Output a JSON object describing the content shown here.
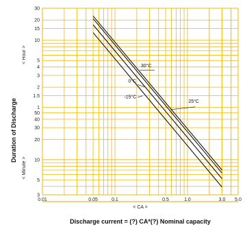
{
  "chart_data": {
    "type": "line",
    "xlabel": "Discharge current = (?) CA*(?) Nominal capacity",
    "x_unit_label": "< CA >",
    "ylabel": "Duration of Discharge",
    "y_unit_hour": "< Hour >",
    "y_unit_minute": "< Minute >",
    "x_scale": "log",
    "y_scale": "log",
    "xlim": [
      0.01,
      5.0
    ],
    "ylim_minutes": [
      3,
      1800
    ],
    "grid": true,
    "grid_color": "#f2b705",
    "line_color": "#111111",
    "x_ticks": [
      "0.01",
      "0.05",
      "0.1",
      "0.5",
      "1.0",
      "3.0",
      "5.0"
    ],
    "y_ticks_hour": [
      "30",
      "20",
      "15",
      "10",
      "5",
      "4",
      "3",
      "2",
      "1.5",
      "1"
    ],
    "y_ticks_minute": [
      "50",
      "40",
      "30",
      "20",
      "10",
      "5",
      "3"
    ],
    "series": [
      {
        "name": "30°C",
        "x": [
          0.05,
          3.0
        ],
        "y_minutes": [
          1380,
          7.0
        ]
      },
      {
        "name": "25°C",
        "x": [
          0.05,
          3.0
        ],
        "y_minutes": [
          1260,
          6.3
        ]
      },
      {
        "name": "0°C",
        "x": [
          0.05,
          3.0
        ],
        "y_minutes": [
          1020,
          5.2
        ]
      },
      {
        "name": "-15°C",
        "x": [
          0.05,
          3.0
        ],
        "y_minutes": [
          780,
          3.9
        ]
      }
    ]
  }
}
